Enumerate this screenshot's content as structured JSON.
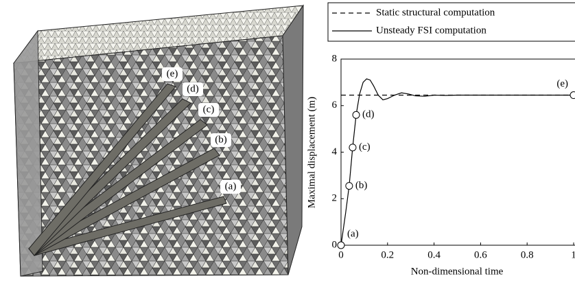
{
  "illustration": {
    "labels": [
      "(e)",
      "(d)",
      "(c)",
      "(b)",
      "(a)"
    ]
  },
  "chart_data": {
    "type": "line",
    "xlabel": "Non-dimensional time",
    "ylabel": "Maximal displacement (m)",
    "xlim": [
      0,
      1
    ],
    "ylim": [
      0,
      8
    ],
    "xticks": [
      0,
      0.2,
      0.4,
      0.6,
      0.8,
      1
    ],
    "yticks": [
      0,
      2,
      4,
      6,
      8
    ],
    "series": [
      {
        "name": "Static structural computation",
        "color": "#000000",
        "style": "dashed",
        "x": [
          0,
          1
        ],
        "values": [
          6.45,
          6.45
        ]
      },
      {
        "name": "Unsteady FSI computation",
        "color": "#000000",
        "style": "solid",
        "x": [
          0,
          0.02,
          0.035,
          0.05,
          0.065,
          0.08,
          0.095,
          0.11,
          0.125,
          0.14,
          0.16,
          0.18,
          0.2,
          0.23,
          0.26,
          0.29,
          0.32,
          0.36,
          0.4,
          0.45,
          0.5,
          0.6,
          0.8,
          1
        ],
        "values": [
          0,
          1.4,
          2.55,
          4.2,
          5.6,
          6.5,
          7.0,
          7.15,
          7.1,
          6.85,
          6.45,
          6.25,
          6.3,
          6.45,
          6.55,
          6.5,
          6.42,
          6.4,
          6.45,
          6.44,
          6.45,
          6.45,
          6.45,
          6.45
        ]
      }
    ],
    "snapshots": {
      "x": [
        0,
        0.035,
        0.05,
        0.065,
        1
      ],
      "values": [
        0,
        2.55,
        4.2,
        5.6,
        6.45
      ],
      "labels": [
        "(a)",
        "(b)",
        "(c)",
        "(d)",
        "(e)"
      ]
    }
  }
}
